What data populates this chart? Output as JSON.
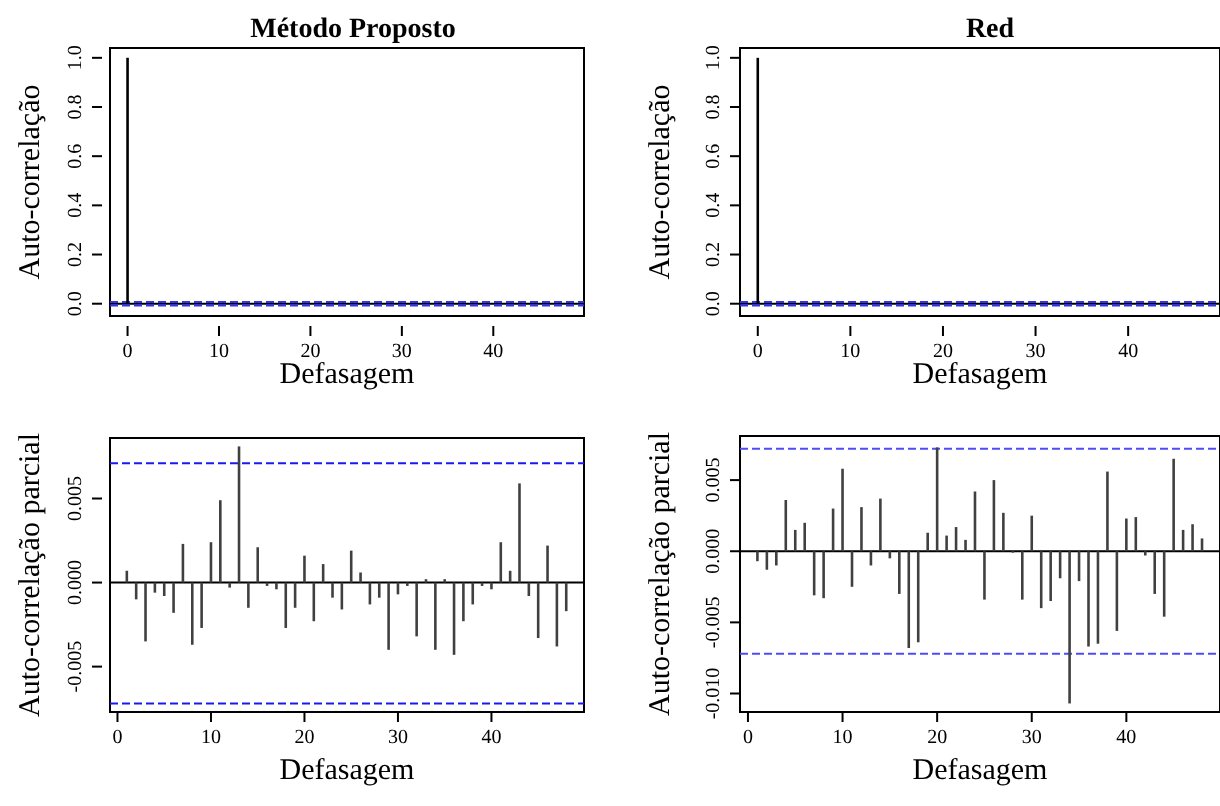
{
  "chart_data": [
    {
      "type": "bar",
      "title": "Método Proposto",
      "xlabel": "Defasagem",
      "ylabel": "Auto-correlação",
      "color": "#000000",
      "x": [
        0,
        1,
        2,
        3,
        4,
        5,
        6,
        7,
        8,
        9,
        10,
        11,
        12,
        13,
        14,
        15,
        16,
        17,
        18,
        19,
        20,
        21,
        22,
        23,
        24,
        25,
        26,
        27,
        28,
        29,
        30,
        31,
        32,
        33,
        34,
        35,
        36,
        37,
        38,
        39,
        40,
        41,
        42,
        43,
        44,
        45,
        46,
        47,
        48
      ],
      "values": [
        1,
        0,
        0,
        0,
        0,
        0,
        0,
        0,
        0,
        0,
        0,
        0,
        0,
        0,
        0,
        0,
        0,
        0,
        0,
        0,
        0,
        0,
        0,
        0,
        0,
        0,
        0,
        0,
        0,
        0,
        0,
        0,
        0,
        0,
        0,
        0,
        0,
        0,
        0,
        0,
        0,
        0,
        0,
        0,
        0,
        0,
        0,
        0,
        0
      ],
      "xlim": [
        -1.92,
        49.92
      ],
      "ylim": [
        -0.05,
        1.04
      ],
      "xticks": [
        0,
        10,
        20,
        30,
        40
      ],
      "yticks": [
        {
          "value": 0,
          "label": "0.0"
        },
        {
          "value": 0.2,
          "label": "0.2"
        },
        {
          "value": 0.4,
          "label": "0.4"
        },
        {
          "value": 0.6,
          "label": "0.6"
        },
        {
          "value": 0.8,
          "label": "0.8"
        },
        {
          "value": 1,
          "label": "1.0"
        }
      ],
      "ref_lines": [
        {
          "axis": "y",
          "value": 0,
          "color": "#000000",
          "line_style": "solid"
        },
        {
          "axis": "y",
          "value": 0.0071,
          "color": "#3333ee",
          "line_style": "dashed"
        },
        {
          "axis": "y",
          "value": -0.0071,
          "color": "#3333ee",
          "line_style": "dashed"
        }
      ]
    },
    {
      "type": "bar",
      "title": "Red",
      "xlabel": "Defasagem",
      "ylabel": "Auto-correlação",
      "color": "#000000",
      "x": [
        0,
        1,
        2,
        3,
        4,
        5,
        6,
        7,
        8,
        9,
        10,
        11,
        12,
        13,
        14,
        15,
        16,
        17,
        18,
        19,
        20,
        21,
        22,
        23,
        24,
        25,
        26,
        27,
        28,
        29,
        30,
        31,
        32,
        33,
        34,
        35,
        36,
        37,
        38,
        39,
        40,
        41,
        42,
        43,
        44,
        45,
        46,
        47,
        48
      ],
      "values": [
        1,
        0,
        0,
        0,
        0,
        0,
        0,
        0,
        0,
        0,
        0,
        0,
        0,
        0,
        0,
        0,
        0,
        0,
        0,
        0,
        0,
        0,
        0,
        0,
        0,
        0,
        0,
        0,
        0,
        0,
        0,
        0,
        0,
        0,
        0,
        0,
        0,
        0,
        0,
        0,
        0,
        0,
        0,
        0,
        0,
        0,
        0,
        0,
        0
      ],
      "xlim": [
        -1.92,
        49.92
      ],
      "ylim": [
        -0.05,
        1.04
      ],
      "xticks": [
        0,
        10,
        20,
        30,
        40
      ],
      "yticks": [
        {
          "value": 0,
          "label": "0.0"
        },
        {
          "value": 0.2,
          "label": "0.2"
        },
        {
          "value": 0.4,
          "label": "0.4"
        },
        {
          "value": 0.6,
          "label": "0.6"
        },
        {
          "value": 0.8,
          "label": "0.8"
        },
        {
          "value": 1,
          "label": "1.0"
        }
      ],
      "ref_lines": [
        {
          "axis": "y",
          "value": 0,
          "color": "#000000",
          "line_style": "solid"
        },
        {
          "axis": "y",
          "value": 0.0072,
          "color": "#3333ee",
          "line_style": "dashed"
        },
        {
          "axis": "y",
          "value": -0.0072,
          "color": "#3333ee",
          "line_style": "dashed"
        }
      ]
    },
    {
      "type": "bar",
      "xlabel": "Defasagem",
      "ylabel": "Auto-correlação parcial",
      "color": "#404040",
      "x": [
        1,
        2,
        3,
        4,
        5,
        6,
        7,
        8,
        9,
        10,
        11,
        12,
        13,
        14,
        15,
        16,
        17,
        18,
        19,
        20,
        21,
        22,
        23,
        24,
        25,
        26,
        27,
        28,
        29,
        30,
        31,
        32,
        33,
        34,
        35,
        36,
        37,
        38,
        39,
        40,
        41,
        42,
        43,
        44,
        45,
        46,
        47,
        48
      ],
      "values": [
        0.0007,
        -0.001,
        -0.0035,
        -0.0006,
        -0.0008,
        -0.0018,
        0.0023,
        -0.0037,
        -0.0027,
        0.0024,
        0.0049,
        -0.0003,
        0.0081,
        -0.0015,
        0.0021,
        -0.0002,
        -0.0004,
        -0.0027,
        -0.0015,
        0.0016,
        -0.0023,
        0.0011,
        -0.0009,
        -0.0016,
        0.0019,
        0.0006,
        -0.0013,
        -0.0009,
        -0.004,
        -0.0007,
        -0.0002,
        -0.0032,
        0.0002,
        -0.004,
        0.0002,
        -0.0043,
        -0.0023,
        -0.0013,
        -0.0002,
        -0.0004,
        0.0024,
        0.0007,
        0.0059,
        -0.0008,
        -0.0033,
        0.0022,
        -0.0038,
        -0.0017
      ],
      "xlim": [
        -0.8,
        49.9
      ],
      "ylim": [
        -0.0077,
        0.0086
      ],
      "xticks": [
        0,
        10,
        20,
        30,
        40
      ],
      "yticks": [
        {
          "value": -0.005,
          "label": "-0.005"
        },
        {
          "value": 0,
          "label": "0.000"
        },
        {
          "value": 0.005,
          "label": "0.005"
        }
      ],
      "ref_lines": [
        {
          "axis": "y",
          "value": 0,
          "color": "#000000",
          "line_style": "solid"
        },
        {
          "axis": "y",
          "value": 0.0071,
          "color": "#1a1aee",
          "line_style": "dashed"
        },
        {
          "axis": "y",
          "value": -0.0072,
          "color": "#1a1aee",
          "line_style": "dashed"
        }
      ]
    },
    {
      "type": "bar",
      "xlabel": "Defasagem",
      "ylabel": "Auto-correlação parcial",
      "color": "#404040",
      "x": [
        1,
        2,
        3,
        4,
        5,
        6,
        7,
        8,
        9,
        10,
        11,
        12,
        13,
        14,
        15,
        16,
        17,
        18,
        19,
        20,
        21,
        22,
        23,
        24,
        25,
        26,
        27,
        28,
        29,
        30,
        31,
        32,
        33,
        34,
        35,
        36,
        37,
        38,
        39,
        40,
        41,
        42,
        43,
        44,
        45,
        46,
        47,
        48
      ],
      "values": [
        -0.0007,
        -0.0013,
        -0.001,
        0.0036,
        0.0015,
        0.002,
        -0.0031,
        -0.0033,
        0.003,
        0.0058,
        -0.0025,
        0.0031,
        -0.001,
        0.0037,
        -0.0005,
        -0.003,
        -0.0068,
        -0.0064,
        0.0013,
        0.0073,
        0.0011,
        0.0017,
        0.0008,
        0.0042,
        -0.0034,
        0.005,
        0.0027,
        -0.0001,
        -0.0034,
        0.0025,
        -0.004,
        -0.0035,
        -0.0019,
        -0.0107,
        -0.0021,
        -0.0067,
        -0.0065,
        0.0056,
        -0.0056,
        0.0023,
        0.0024,
        -0.0003,
        -0.003,
        -0.0046,
        0.0065,
        0.0015,
        0.0019,
        0.0009
      ],
      "xlim": [
        -0.84,
        49.9
      ],
      "ylim": [
        -0.0113,
        0.0081
      ],
      "xticks": [
        0,
        10,
        20,
        30,
        40
      ],
      "yticks": [
        {
          "value": -0.01,
          "label": "-0.010"
        },
        {
          "value": -0.005,
          "label": "-0.005"
        },
        {
          "value": 0,
          "label": "0.000"
        },
        {
          "value": 0.005,
          "label": "0.005"
        }
      ],
      "ref_lines": [
        {
          "axis": "y",
          "value": 0,
          "color": "#000000",
          "line_style": "solid"
        },
        {
          "axis": "y",
          "value": 0.0072,
          "color": "#4d4df5",
          "line_style": "dashed"
        },
        {
          "axis": "y",
          "value": -0.0072,
          "color": "#4d4df5",
          "line_style": "dashed"
        }
      ]
    }
  ]
}
